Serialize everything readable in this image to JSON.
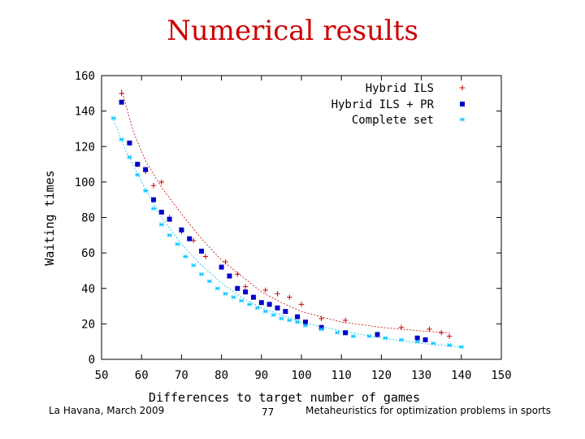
{
  "slide": {
    "title": "Numerical results",
    "footer_left": "La Havana, March 2009",
    "page_number": "77",
    "footer_right": "Metaheuristics for optimization problems in sports"
  },
  "chart_data": {
    "type": "scatter",
    "title": "",
    "xlabel": "Differences to target number of games",
    "ylabel": "Waiting times",
    "xlim": [
      50,
      150
    ],
    "ylim": [
      0,
      160
    ],
    "xticks": [
      50,
      60,
      70,
      80,
      90,
      100,
      110,
      120,
      130,
      140,
      150
    ],
    "yticks": [
      0,
      20,
      40,
      60,
      80,
      100,
      120,
      140,
      160
    ],
    "grid": false,
    "legend_position": "top-right",
    "series": [
      {
        "name": "Hybrid ILS",
        "marker": "plus",
        "color": "#cc0000",
        "x": [
          55,
          57,
          59,
          61,
          63,
          65,
          67,
          70,
          73,
          76,
          81,
          84,
          86,
          91,
          94,
          97,
          100,
          105,
          111,
          125,
          132,
          135,
          137
        ],
        "y": [
          150,
          122,
          110,
          106,
          98,
          100,
          80,
          72,
          67,
          58,
          55,
          48,
          41,
          39,
          37,
          35,
          31,
          23,
          22,
          18,
          17,
          15,
          13
        ],
        "trend": {
          "x": [
            55,
            58,
            61,
            65,
            70,
            75,
            80,
            85,
            90,
            95,
            100,
            110,
            120,
            130,
            137
          ],
          "y": [
            152,
            128,
            112,
            97,
            82,
            68,
            56,
            47,
            38,
            32,
            27,
            21,
            18,
            16,
            15
          ]
        }
      },
      {
        "name": "Hybrid ILS + PR",
        "marker": "square",
        "color": "#0000cc",
        "x": [
          55,
          57,
          59,
          61,
          63,
          65,
          67,
          70,
          72,
          75,
          80,
          82,
          84,
          86,
          88,
          90,
          92,
          94,
          96,
          99,
          101,
          105,
          111,
          119,
          129,
          131
        ],
        "y": [
          145,
          122,
          110,
          107,
          90,
          83,
          79,
          73,
          68,
          61,
          52,
          47,
          40,
          38,
          35,
          32,
          31,
          29,
          27,
          24,
          21,
          18,
          15,
          14,
          12,
          11
        ]
      },
      {
        "name": "Complete set",
        "marker": "star",
        "color": "#00bfff",
        "x": [
          53,
          55,
          57,
          59,
          61,
          63,
          65,
          67,
          69,
          71,
          73,
          75,
          77,
          79,
          81,
          83,
          85,
          87,
          89,
          91,
          93,
          95,
          97,
          99,
          101,
          105,
          109,
          113,
          117,
          121,
          125,
          129,
          133,
          137,
          140
        ],
        "y": [
          136,
          124,
          114,
          104,
          95,
          85,
          76,
          70,
          65,
          58,
          53,
          48,
          44,
          40,
          37,
          35,
          33,
          31,
          29,
          27,
          25,
          23,
          22,
          21,
          19,
          17,
          15,
          13,
          13,
          12,
          11,
          10,
          9,
          8,
          7
        ],
        "trend": {
          "x": [
            53,
            56,
            60,
            65,
            70,
            75,
            80,
            85,
            90,
            95,
            100,
            110,
            120,
            130,
            140
          ],
          "y": [
            135,
            118,
            100,
            80,
            65,
            53,
            43,
            35,
            29,
            25,
            21,
            16,
            12,
            9,
            7
          ]
        }
      }
    ]
  }
}
